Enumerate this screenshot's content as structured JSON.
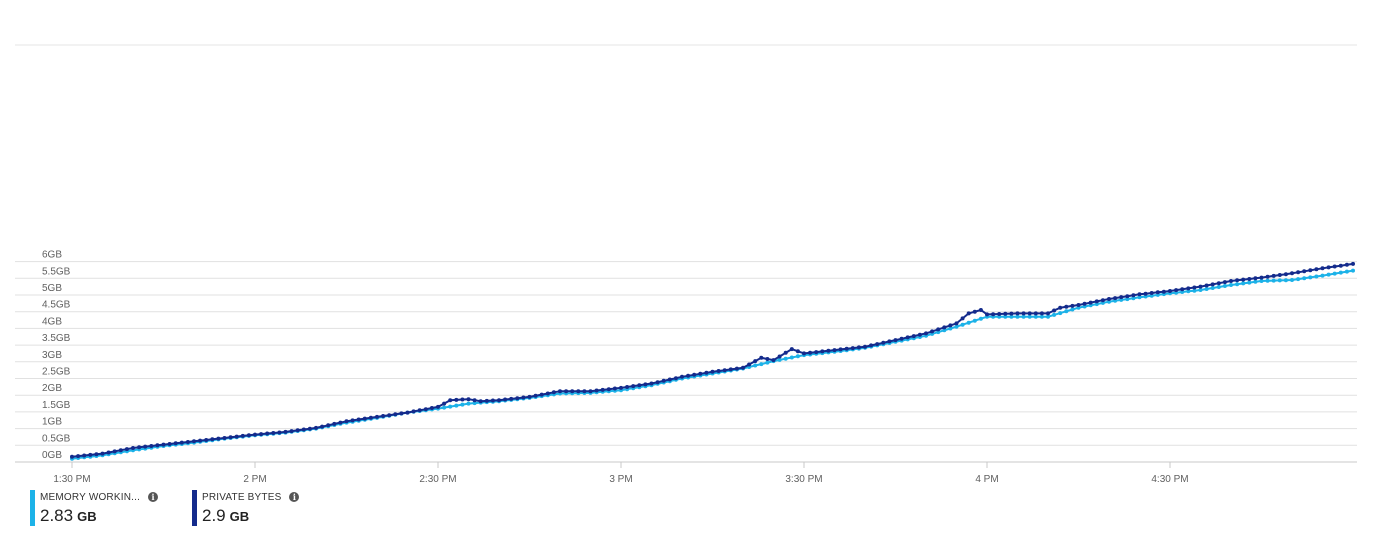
{
  "chart_data": {
    "type": "line",
    "y_ticks": [
      "0GB",
      "0.5GB",
      "1GB",
      "1.5GB",
      "2GB",
      "2.5GB",
      "3GB",
      "3.5GB",
      "4GB",
      "4.5GB",
      "5GB",
      "5.5GB",
      "6GB"
    ],
    "x_ticks": [
      "1:30 PM",
      "2 PM",
      "2:30 PM",
      "3 PM",
      "3:30 PM",
      "4 PM",
      "4:30 PM"
    ],
    "x_tick_minutes": [
      0,
      30,
      60,
      90,
      120,
      150,
      180
    ],
    "ylim": [
      0,
      6.2
    ],
    "xlim_minutes": [
      0,
      210
    ],
    "grid": true,
    "legend_position": "bottom-left",
    "series": [
      {
        "name": "MEMORY WORKIN...",
        "color": "#1cb2e8",
        "summary_value": "2.83",
        "summary_unit": "GB",
        "points": [
          [
            0,
            0.1
          ],
          [
            5,
            0.2
          ],
          [
            10,
            0.35
          ],
          [
            15,
            0.48
          ],
          [
            20,
            0.58
          ],
          [
            25,
            0.7
          ],
          [
            30,
            0.8
          ],
          [
            35,
            0.88
          ],
          [
            40,
            1.0
          ],
          [
            45,
            1.18
          ],
          [
            50,
            1.32
          ],
          [
            55,
            1.48
          ],
          [
            60,
            1.6
          ],
          [
            65,
            1.75
          ],
          [
            70,
            1.82
          ],
          [
            75,
            1.92
          ],
          [
            80,
            2.05
          ],
          [
            85,
            2.07
          ],
          [
            90,
            2.15
          ],
          [
            95,
            2.3
          ],
          [
            100,
            2.5
          ],
          [
            105,
            2.65
          ],
          [
            110,
            2.8
          ],
          [
            115,
            3.02
          ],
          [
            120,
            3.2
          ],
          [
            125,
            3.3
          ],
          [
            130,
            3.42
          ],
          [
            135,
            3.6
          ],
          [
            140,
            3.78
          ],
          [
            145,
            4.05
          ],
          [
            150,
            4.35
          ],
          [
            155,
            4.35
          ],
          [
            160,
            4.35
          ],
          [
            165,
            4.62
          ],
          [
            170,
            4.8
          ],
          [
            175,
            4.93
          ],
          [
            180,
            5.05
          ],
          [
            185,
            5.15
          ],
          [
            190,
            5.3
          ],
          [
            195,
            5.42
          ],
          [
            200,
            5.45
          ],
          [
            205,
            5.58
          ],
          [
            210,
            5.73
          ]
        ]
      },
      {
        "name": "PRIVATE BYTES",
        "color": "#142b8c",
        "summary_value": "2.9",
        "summary_unit": "GB",
        "points": [
          [
            0,
            0.16
          ],
          [
            5,
            0.25
          ],
          [
            10,
            0.42
          ],
          [
            15,
            0.52
          ],
          [
            20,
            0.62
          ],
          [
            25,
            0.72
          ],
          [
            30,
            0.82
          ],
          [
            35,
            0.9
          ],
          [
            40,
            1.02
          ],
          [
            45,
            1.22
          ],
          [
            50,
            1.35
          ],
          [
            55,
            1.48
          ],
          [
            60,
            1.65
          ],
          [
            62,
            1.85
          ],
          [
            65,
            1.88
          ],
          [
            67,
            1.82
          ],
          [
            70,
            1.85
          ],
          [
            75,
            1.95
          ],
          [
            80,
            2.12
          ],
          [
            85,
            2.12
          ],
          [
            90,
            2.22
          ],
          [
            95,
            2.35
          ],
          [
            100,
            2.55
          ],
          [
            105,
            2.7
          ],
          [
            110,
            2.82
          ],
          [
            113,
            3.12
          ],
          [
            115,
            3.05
          ],
          [
            118,
            3.38
          ],
          [
            120,
            3.25
          ],
          [
            125,
            3.35
          ],
          [
            130,
            3.45
          ],
          [
            135,
            3.65
          ],
          [
            140,
            3.85
          ],
          [
            145,
            4.15
          ],
          [
            147,
            4.45
          ],
          [
            149,
            4.55
          ],
          [
            150,
            4.42
          ],
          [
            155,
            4.45
          ],
          [
            160,
            4.45
          ],
          [
            162,
            4.62
          ],
          [
            165,
            4.7
          ],
          [
            170,
            4.88
          ],
          [
            175,
            5.02
          ],
          [
            180,
            5.12
          ],
          [
            185,
            5.25
          ],
          [
            190,
            5.42
          ],
          [
            195,
            5.52
          ],
          [
            200,
            5.65
          ],
          [
            205,
            5.8
          ],
          [
            210,
            5.93
          ]
        ]
      }
    ]
  }
}
